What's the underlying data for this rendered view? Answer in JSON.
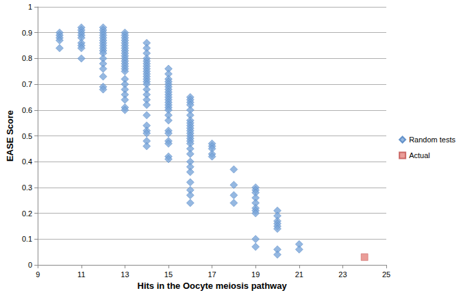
{
  "chart_data": {
    "type": "scatter",
    "x_label": "Hits in the Oocyte meiosis pathway",
    "y_label": "EASE Score",
    "xlim": [
      9,
      25
    ],
    "xticks": [
      9,
      11,
      13,
      15,
      17,
      19,
      21,
      23,
      25
    ],
    "ylim": [
      0,
      1
    ],
    "yticks": [
      0,
      0.1,
      0.2,
      0.3,
      0.4,
      0.5,
      0.6,
      0.7,
      0.8,
      0.9,
      1
    ],
    "grid": true,
    "legend": "right",
    "series": [
      {
        "name": "Random tests",
        "color": "#7ba6da",
        "marker": "diamond",
        "x": [
          10,
          10,
          10,
          10,
          10,
          11,
          11,
          11,
          11,
          11,
          11,
          11,
          11,
          11,
          12,
          12,
          12,
          12,
          12,
          12,
          12,
          12,
          12,
          12,
          12,
          12,
          12,
          12,
          12,
          12,
          12,
          13,
          13,
          13,
          13,
          13,
          13,
          13,
          13,
          13,
          13,
          13,
          13,
          13,
          13,
          13,
          13,
          13,
          13,
          13,
          13,
          13,
          13,
          13,
          14,
          14,
          14,
          14,
          14,
          14,
          14,
          14,
          14,
          14,
          14,
          14,
          14,
          14,
          14,
          14,
          14,
          14,
          14,
          14,
          14,
          14,
          14,
          14,
          15,
          15,
          15,
          15,
          15,
          15,
          15,
          15,
          15,
          15,
          15,
          15,
          15,
          15,
          15,
          15,
          15,
          15,
          15,
          15,
          15,
          15,
          15,
          16,
          16,
          16,
          16,
          16,
          16,
          16,
          16,
          16,
          16,
          16,
          16,
          16,
          16,
          16,
          16,
          16,
          16,
          16,
          16,
          16,
          16,
          16,
          16,
          16,
          17,
          17,
          17,
          17,
          17,
          18,
          18,
          18,
          18,
          19,
          19,
          19,
          19,
          19,
          19,
          19,
          19,
          19,
          19,
          20,
          20,
          20,
          20,
          20,
          20,
          20,
          20,
          21,
          21
        ],
        "values": [
          0.9,
          0.89,
          0.88,
          0.87,
          0.84,
          0.92,
          0.91,
          0.9,
          0.89,
          0.88,
          0.86,
          0.85,
          0.84,
          0.8,
          0.92,
          0.91,
          0.9,
          0.89,
          0.88,
          0.87,
          0.86,
          0.85,
          0.84,
          0.83,
          0.82,
          0.8,
          0.78,
          0.76,
          0.73,
          0.69,
          0.68,
          0.9,
          0.89,
          0.88,
          0.87,
          0.86,
          0.85,
          0.84,
          0.83,
          0.82,
          0.81,
          0.8,
          0.79,
          0.78,
          0.77,
          0.76,
          0.75,
          0.72,
          0.7,
          0.68,
          0.66,
          0.64,
          0.61,
          0.6,
          0.86,
          0.84,
          0.82,
          0.8,
          0.79,
          0.78,
          0.77,
          0.76,
          0.75,
          0.74,
          0.73,
          0.72,
          0.71,
          0.7,
          0.68,
          0.66,
          0.64,
          0.62,
          0.58,
          0.54,
          0.52,
          0.51,
          0.48,
          0.46,
          0.76,
          0.74,
          0.72,
          0.71,
          0.7,
          0.69,
          0.68,
          0.67,
          0.66,
          0.65,
          0.64,
          0.63,
          0.62,
          0.61,
          0.6,
          0.58,
          0.56,
          0.52,
          0.51,
          0.48,
          0.47,
          0.42,
          0.41,
          0.65,
          0.64,
          0.63,
          0.62,
          0.6,
          0.58,
          0.56,
          0.55,
          0.54,
          0.53,
          0.52,
          0.51,
          0.5,
          0.49,
          0.48,
          0.47,
          0.45,
          0.43,
          0.4,
          0.38,
          0.36,
          0.32,
          0.29,
          0.27,
          0.24,
          0.47,
          0.46,
          0.45,
          0.43,
          0.42,
          0.37,
          0.31,
          0.27,
          0.24,
          0.3,
          0.29,
          0.28,
          0.26,
          0.24,
          0.22,
          0.21,
          0.2,
          0.1,
          0.07,
          0.21,
          0.19,
          0.17,
          0.16,
          0.15,
          0.14,
          0.06,
          0.04,
          0.08,
          0.06
        ]
      },
      {
        "name": "Actual",
        "color": "#e5857e",
        "marker": "square",
        "x": [
          24
        ],
        "values": [
          0.03
        ]
      }
    ]
  }
}
